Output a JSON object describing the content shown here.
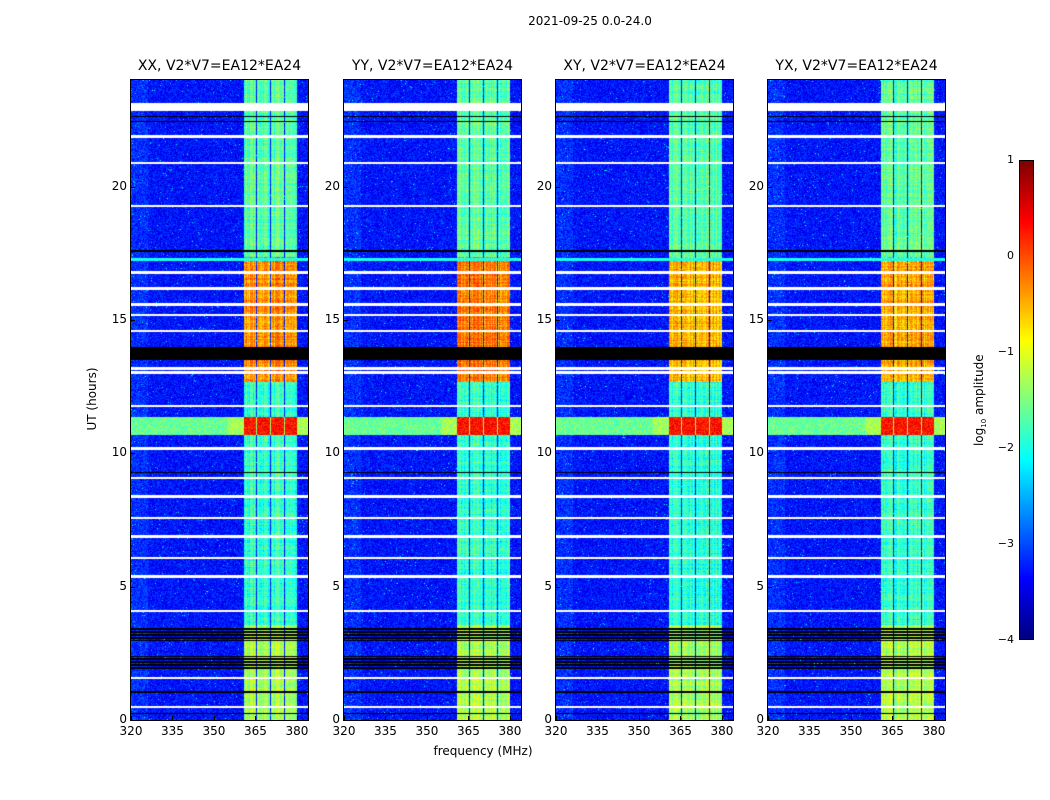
{
  "chart_data": {
    "type": "heatmap",
    "title": "2021-09-25 0.0-24.0",
    "xlabel": "frequency (MHz)",
    "ylabel": "UT (hours)",
    "xlim": [
      320,
      384
    ],
    "ylim": [
      0,
      24
    ],
    "xticks": [
      "320",
      "335",
      "350",
      "365",
      "380"
    ],
    "xtick_values": [
      320,
      335,
      350,
      365,
      380
    ],
    "yticks": [
      "0",
      "5",
      "10",
      "15",
      "20"
    ],
    "ytick_values": [
      0,
      5,
      10,
      15,
      20
    ],
    "panels": [
      {
        "title": "XX, V2*V7=EA12*EA24",
        "active_boost": 0.25
      },
      {
        "title": "YY, V2*V7=EA12*EA24",
        "active_boost": 0.35
      },
      {
        "title": "XY, V2*V7=EA12*EA24",
        "active_boost": 0.1
      },
      {
        "title": "YX, V2*V7=EA12*EA24",
        "active_boost": 0.1
      }
    ],
    "colorbar": {
      "label_main": "log",
      "label_sub": "10",
      "label_rest": " amplitude",
      "range": [
        -4,
        1
      ],
      "ticks": [
        "1",
        "0",
        "−1",
        "−2",
        "−3",
        "−4"
      ],
      "tick_values": [
        1,
        0,
        -1,
        -2,
        -3,
        -4
      ],
      "colormap": "jet"
    },
    "background_level": -3.3,
    "signal_subbands_mhz": [
      [
        360.5,
        365
      ],
      [
        365.5,
        370
      ],
      [
        370.5,
        375
      ],
      [
        375.5,
        380
      ]
    ],
    "signal_levels": [
      {
        "hours": [
          0,
          3.6
        ],
        "level": -1.3
      },
      {
        "hours": [
          3.6,
          12.7
        ],
        "level": -1.9
      },
      {
        "hours": [
          12.7,
          17.4
        ],
        "level": -0.6
      },
      {
        "hours": [
          17.4,
          24
        ],
        "level": -1.7
      }
    ],
    "rfi_band_hours": [
      10.7,
      11.4
    ],
    "rfi_band_level": -1.6,
    "rfi_band_signal_level": 0.3,
    "cyan_line_hour": 17.3,
    "flagged_white_hours": [
      22.9,
      23.1,
      21.9,
      20.9,
      19.3,
      16.8,
      16.2,
      15.6,
      15.2,
      14.6,
      13.2,
      13.05,
      11.8,
      10.2,
      9.1,
      8.4,
      7.6,
      6.9,
      6.1,
      5.4,
      4.1,
      1.6,
      0.5
    ],
    "flagged_black_hours": [
      [
        22.6,
        22.65
      ],
      [
        22.45,
        22.5
      ],
      [
        17.55,
        17.65
      ],
      [
        13.5,
        14.0
      ],
      [
        9.28,
        9.35
      ],
      [
        3.0,
        3.5
      ],
      [
        1.9,
        2.4
      ],
      [
        1.05,
        1.12
      ],
      [
        0.22,
        0.28
      ]
    ]
  }
}
